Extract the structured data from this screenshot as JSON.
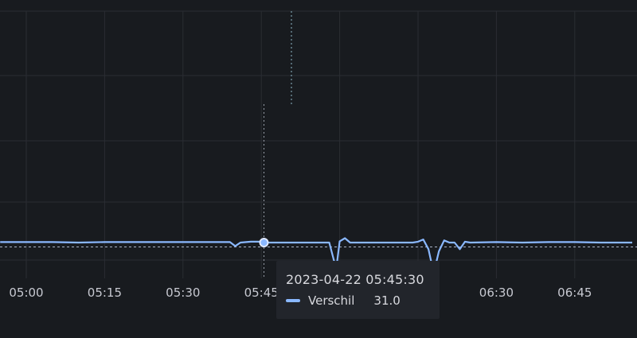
{
  "chart_data": {
    "type": "line",
    "x_ticks": [
      "05:00",
      "05:15",
      "05:30",
      "05:45",
      "06:00",
      "06:15",
      "06:30",
      "06:45"
    ],
    "series": [
      {
        "color": "#8ab8ff",
        "points": [
          [
            "04:55",
            31.1
          ],
          [
            "05:00",
            31.1
          ],
          [
            "05:05",
            31.1
          ],
          [
            "05:10",
            31.0
          ],
          [
            "05:15",
            31.1
          ],
          [
            "05:20",
            31.1
          ],
          [
            "05:25",
            31.1
          ],
          [
            "05:30",
            31.1
          ],
          [
            "05:35",
            31.1
          ],
          [
            "05:39",
            31.1
          ],
          [
            "05:40",
            30.2
          ],
          [
            "05:41",
            31.0
          ],
          [
            "05:43",
            31.2
          ],
          [
            "05:45",
            31.2
          ],
          [
            "05:45:30",
            31.0
          ],
          [
            "05:50",
            31.0
          ],
          [
            "05:55",
            31.0
          ],
          [
            "05:58",
            31.0
          ],
          [
            "05:59",
            26.5
          ],
          [
            "05:59:30",
            26.5
          ],
          [
            "06:00",
            31.3
          ],
          [
            "06:01",
            32.0
          ],
          [
            "06:02",
            31.0
          ],
          [
            "06:05",
            31.0
          ],
          [
            "06:10",
            31.0
          ],
          [
            "06:14",
            31.0
          ],
          [
            "06:15",
            31.2
          ],
          [
            "06:16",
            31.7
          ],
          [
            "06:17",
            29.5
          ],
          [
            "06:18",
            24.0
          ],
          [
            "06:19",
            29.0
          ],
          [
            "06:20",
            31.5
          ],
          [
            "06:21",
            31.0
          ],
          [
            "06:22",
            31.0
          ],
          [
            "06:23",
            29.5
          ],
          [
            "06:24",
            31.2
          ],
          [
            "06:25",
            31.0
          ],
          [
            "06:30",
            31.1
          ],
          [
            "06:35",
            31.0
          ],
          [
            "06:40",
            31.1
          ],
          [
            "06:45",
            31.1
          ],
          [
            "06:50",
            31.0
          ],
          [
            "06:56",
            31.0
          ]
        ]
      }
    ],
    "threshold_value": 30.0,
    "hover": {
      "time": "2023-04-22 05:45:30",
      "series_name": "Verschil",
      "value": "31.0"
    },
    "grid": true
  }
}
